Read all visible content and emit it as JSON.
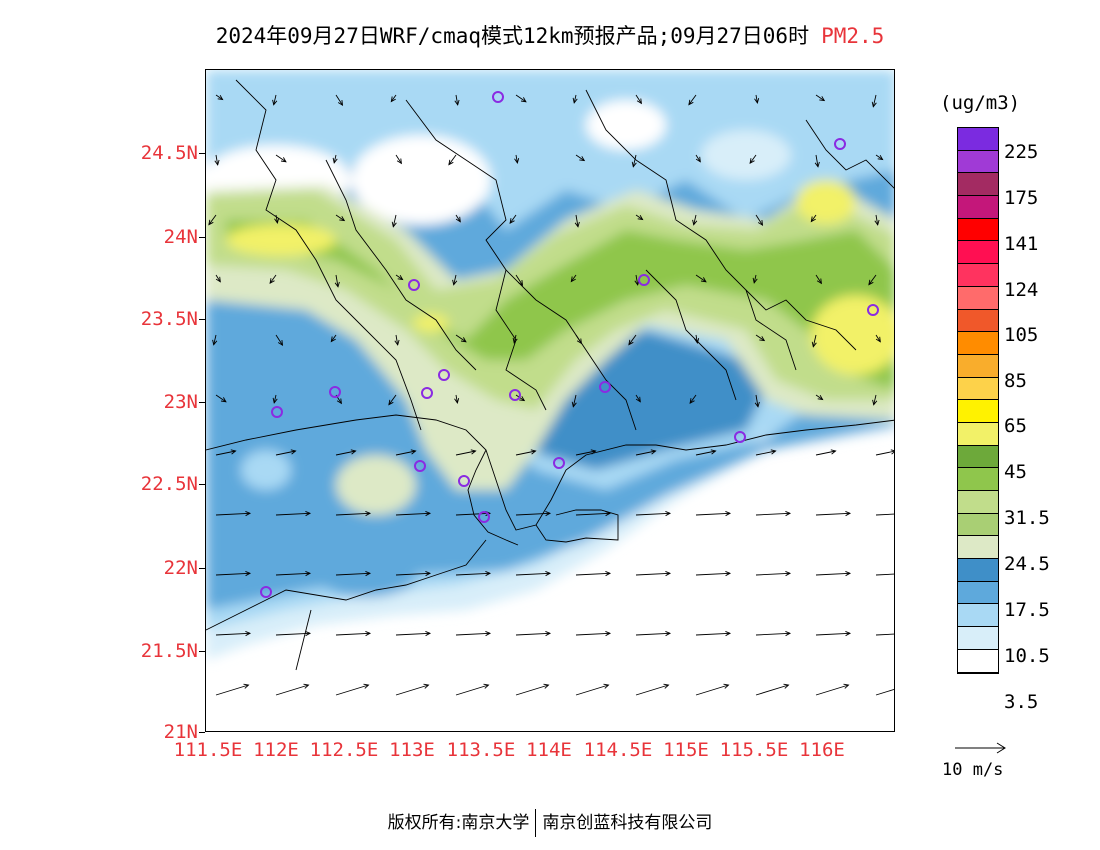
{
  "title": {
    "main": "2024年09月27日WRF/cmaq模式12km预报产品;09月27日06时",
    "variable": "PM2.5"
  },
  "map": {
    "lat_labels": [
      "24.5N",
      "24N",
      "23.5N",
      "23N",
      "22.5N",
      "22N",
      "21.5N",
      "21N"
    ],
    "lon_labels": [
      "111.5E",
      "112E",
      "112.5E",
      "113E",
      "113.5E",
      "114E",
      "114.5E",
      "115E",
      "115.5E",
      "116E"
    ],
    "colors": {
      "white": "#ffffff",
      "c3_5": "#d8eef9",
      "c10_5": "#a9d9f4",
      "c17_5_light": "#5ea9dc",
      "c17_5": "#3f8fc8",
      "pale": "#dde9c6",
      "c24_5": "#c1dd8b",
      "c31_5": "#8fc64c",
      "c31_5_dark": "#6da93a",
      "c45": "#f2f168",
      "c65": "#fff200",
      "station": "#8a2be2"
    }
  },
  "legend": {
    "units": "(ug/m3)",
    "labels": [
      "225",
      "175",
      "141",
      "124",
      "105",
      "85",
      "65",
      "45",
      "31.5",
      "24.5",
      "17.5",
      "10.5",
      "3.5"
    ],
    "swatch_colors": [
      "#7b2be0",
      "#a03ad6",
      "#a32b62",
      "#c4177a",
      "#ff0000",
      "#ff0f52",
      "#ff335f",
      "#ff6b6b",
      "#f0582a",
      "#ff8c00",
      "#f9ad2c",
      "#fdd24a",
      "#fff200",
      "#f2f168",
      "#6da93a",
      "#8fc64c",
      "#c1dd8b",
      "#a9cf74",
      "#dde9c6",
      "#3f8fc8",
      "#5ea9dc",
      "#a9d9f4",
      "#d8eef9",
      "#ffffff"
    ]
  },
  "wind_key": {
    "label": "10 m/s"
  },
  "footer": {
    "copyright": "版权所有:南京大学",
    "company": "南京创蓝科技有限公司"
  }
}
